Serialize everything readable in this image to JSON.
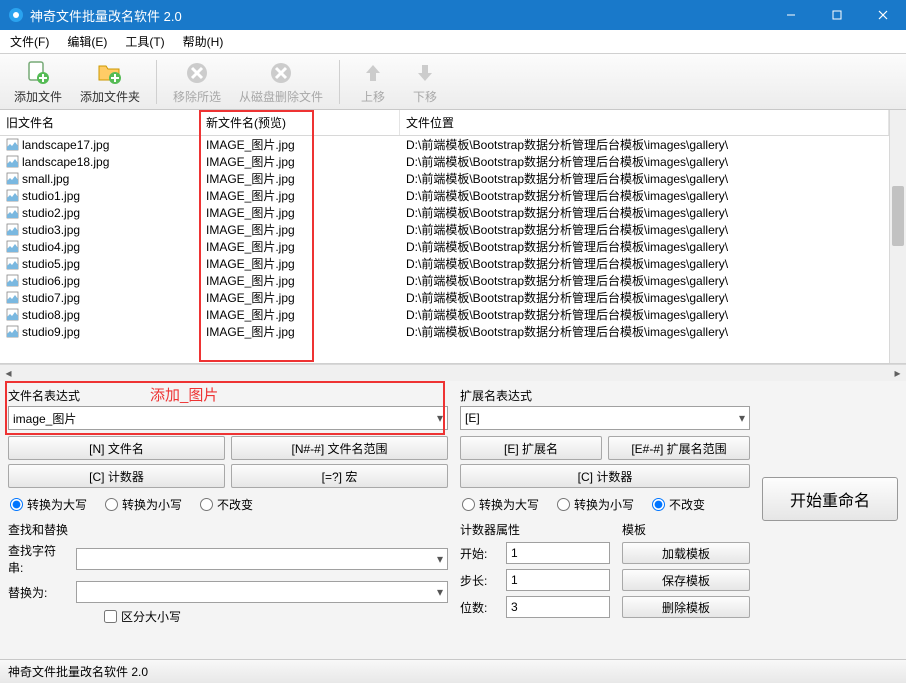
{
  "window": {
    "title": "神奇文件批量改名软件 2.0"
  },
  "menu": {
    "file": "文件(F)",
    "edit": "编辑(E)",
    "tool": "工具(T)",
    "help": "帮助(H)"
  },
  "toolbar": {
    "addfile": "添加文件",
    "addfolder": "添加文件夹",
    "removesel": "移除所选",
    "deletefromdisk": "从磁盘删除文件",
    "moveup": "上移",
    "movedown": "下移"
  },
  "columns": {
    "old": "旧文件名",
    "new": "新文件名(预览)",
    "loc": "文件位置"
  },
  "newname": "IMAGE_图片.jpg",
  "location": "D:\\前端模板\\Bootstrap数据分析管理后台模板\\images\\gallery\\",
  "files": [
    "landscape17.jpg",
    "landscape18.jpg",
    "small.jpg",
    "studio1.jpg",
    "studio2.jpg",
    "studio3.jpg",
    "studio4.jpg",
    "studio5.jpg",
    "studio6.jpg",
    "studio7.jpg",
    "studio8.jpg",
    "studio9.jpg"
  ],
  "expr": {
    "filename_label": "文件名表达式",
    "filename_value": "image_图片",
    "btn_n": "[N] 文件名",
    "btn_nrange": "[N#-#] 文件名范围",
    "btn_c": "[C] 计数器",
    "btn_macro": "[=?] 宏",
    "radio_upper": "转换为大写",
    "radio_lower": "转换为小写",
    "radio_nochange": "不改变",
    "ext_label": "扩展名表达式",
    "ext_value": "[E]",
    "btn_e": "[E] 扩展名",
    "btn_erange": "[E#-#] 扩展名范围",
    "btn_c2": "[C] 计数器"
  },
  "annotation": "添加_图片",
  "search": {
    "title": "查找和替换",
    "find": "查找字符串:",
    "replace": "替换为:",
    "case": "区分大小写"
  },
  "counter": {
    "title": "计数器属性",
    "start": "开始:",
    "step": "步长:",
    "digits": "位数:",
    "start_v": "1",
    "step_v": "1",
    "digits_v": "3"
  },
  "template": {
    "title": "模板",
    "load": "加载模板",
    "save": "保存模板",
    "delete": "删除模板"
  },
  "start": "开始重命名",
  "status": "神奇文件批量改名软件 2.0"
}
